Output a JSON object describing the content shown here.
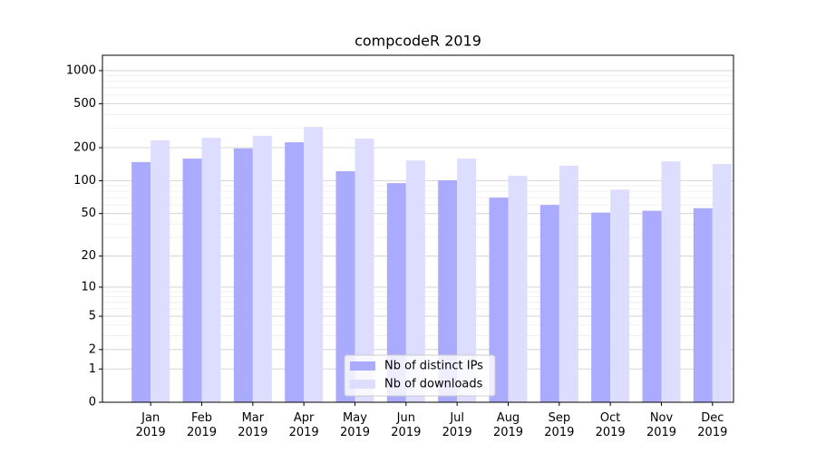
{
  "chart_data": {
    "type": "bar",
    "title": "compcodeR 2019",
    "categories": [
      "Jan\n2019",
      "Feb\n2019",
      "Mar\n2019",
      "Apr\n2019",
      "May\n2019",
      "Jun\n2019",
      "Jul\n2019",
      "Aug\n2019",
      "Sep\n2019",
      "Oct\n2019",
      "Nov\n2019",
      "Dec\n2019"
    ],
    "series": [
      {
        "name": "Nb of distinct IPs",
        "color": "#aaaaff",
        "values": [
          148,
          159,
          197,
          224,
          122,
          95,
          101,
          70,
          60,
          51,
          53,
          56
        ]
      },
      {
        "name": "Nb of downloads",
        "color": "#ddddff",
        "values": [
          233,
          246,
          256,
          309,
          242,
          153,
          159,
          111,
          137,
          83,
          150,
          142
        ]
      }
    ],
    "yscale": "log1p",
    "ylim": [
      0,
      1377
    ],
    "yticks": [
      0,
      1,
      2,
      5,
      10,
      20,
      50,
      100,
      200,
      500,
      1000
    ],
    "minor_yticks": [
      3,
      4,
      6,
      7,
      8,
      9,
      30,
      40,
      60,
      70,
      80,
      90,
      300,
      400,
      600,
      700,
      800,
      900
    ],
    "grid": true,
    "legend": "lower center"
  }
}
